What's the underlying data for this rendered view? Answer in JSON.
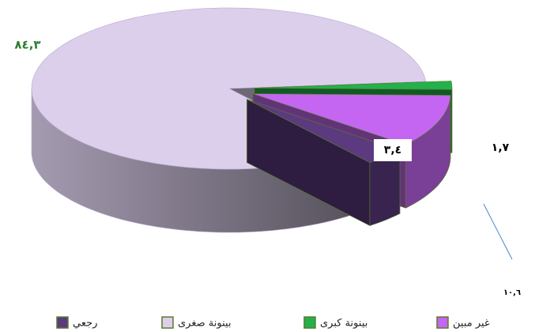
{
  "chart_data": {
    "type": "pie",
    "categories": [
      "رجعي",
      "بينونة صغرى",
      "بينونة كبرى",
      "غير مبين"
    ],
    "values": [
      3.4,
      84.3,
      1.7,
      10.6
    ],
    "value_labels": [
      "٣,٤",
      "٨٤,٣",
      "١,٧",
      "١٠,٦"
    ],
    "colors": [
      "#5b3a80",
      "#dccfec",
      "#22b14c",
      "#c466f2"
    ],
    "legend": "bottom"
  }
}
